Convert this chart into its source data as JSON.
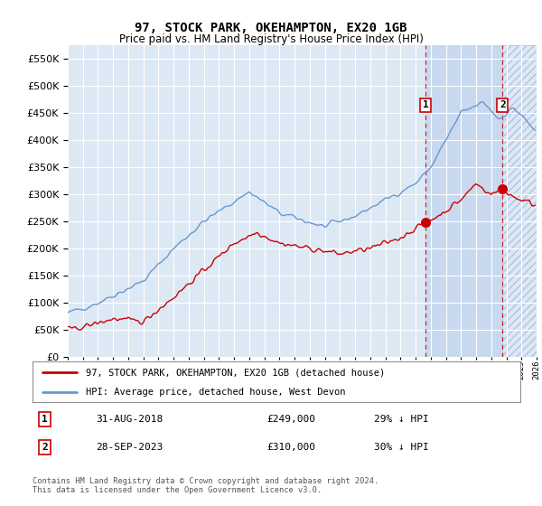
{
  "title": "97, STOCK PARK, OKEHAMPTON, EX20 1GB",
  "subtitle": "Price paid vs. HM Land Registry's House Price Index (HPI)",
  "ylim": [
    0,
    575000
  ],
  "yticks": [
    0,
    50000,
    100000,
    150000,
    200000,
    250000,
    300000,
    350000,
    400000,
    450000,
    500000,
    550000
  ],
  "hpi_color": "#6699cc",
  "price_color": "#cc0000",
  "marker1_year": 2018.67,
  "marker2_year": 2023.75,
  "marker1_price": 249000,
  "marker2_price": 310000,
  "marker1_date_str": "31-AUG-2018",
  "marker2_date_str": "28-SEP-2023",
  "marker1_pct": "29% ↓ HPI",
  "marker2_pct": "30% ↓ HPI",
  "legend_red_label": "97, STOCK PARK, OKEHAMPTON, EX20 1GB (detached house)",
  "legend_blue_label": "HPI: Average price, detached house, West Devon",
  "footer": "Contains HM Land Registry data © Crown copyright and database right 2024.\nThis data is licensed under the Open Government Licence v3.0.",
  "bg_color": "#dde8f5",
  "shade_color": "#c8d8ee",
  "grid_color": "#ffffff",
  "marker_box_color": "#cc0000",
  "xmin": 1995,
  "xmax": 2026
}
